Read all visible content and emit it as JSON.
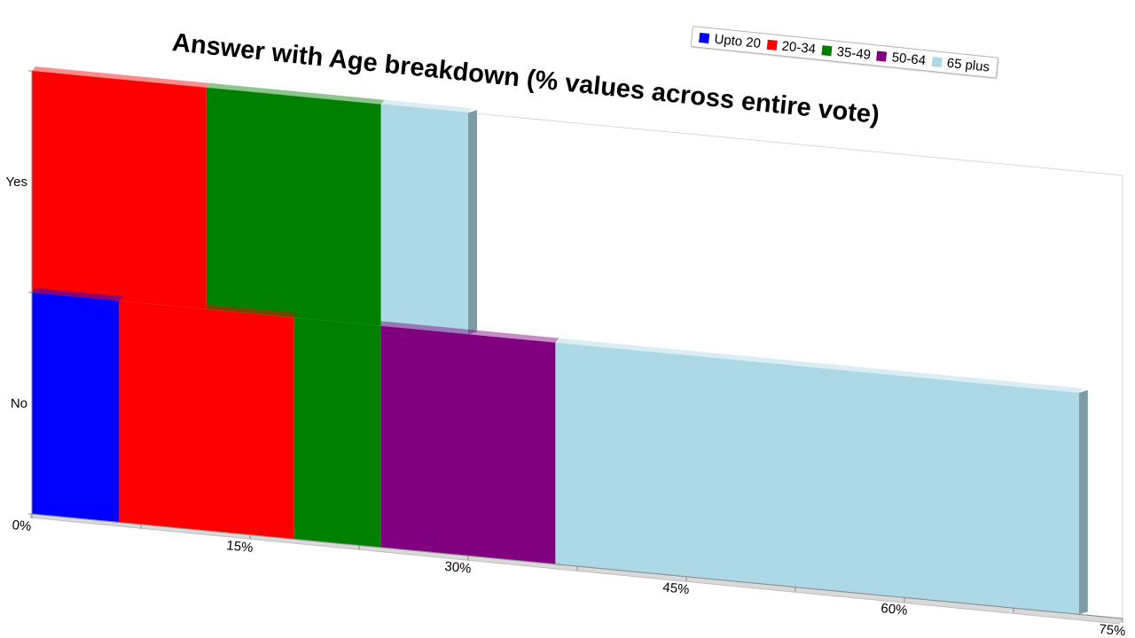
{
  "chart_data": {
    "type": "bar",
    "orientation": "horizontal",
    "stacked": true,
    "three_d": true,
    "title": "Answer with Age breakdown (% values across entire vote)",
    "categories": [
      "Yes",
      "No"
    ],
    "series": [
      {
        "name": "Upto 20",
        "color": "#0000ff",
        "values": [
          0,
          6
        ]
      },
      {
        "name": "20-34",
        "color": "#ff0000",
        "values": [
          12,
          12
        ]
      },
      {
        "name": "35-49",
        "color": "#008000",
        "values": [
          12,
          6
        ]
      },
      {
        "name": "50-64",
        "color": "#800080",
        "values": [
          0,
          12
        ]
      },
      {
        "name": "65 plus",
        "color": "#add8e6",
        "values": [
          6,
          36
        ]
      }
    ],
    "xlim": [
      0,
      75
    ],
    "x_ticks": [
      "0%",
      "15%",
      "30%",
      "45%",
      "60%",
      "75%"
    ],
    "x_tick_values": [
      0,
      15,
      30,
      45,
      60,
      75
    ],
    "xlabel": "",
    "ylabel": "",
    "legend_position": "top-right",
    "grid": false
  }
}
